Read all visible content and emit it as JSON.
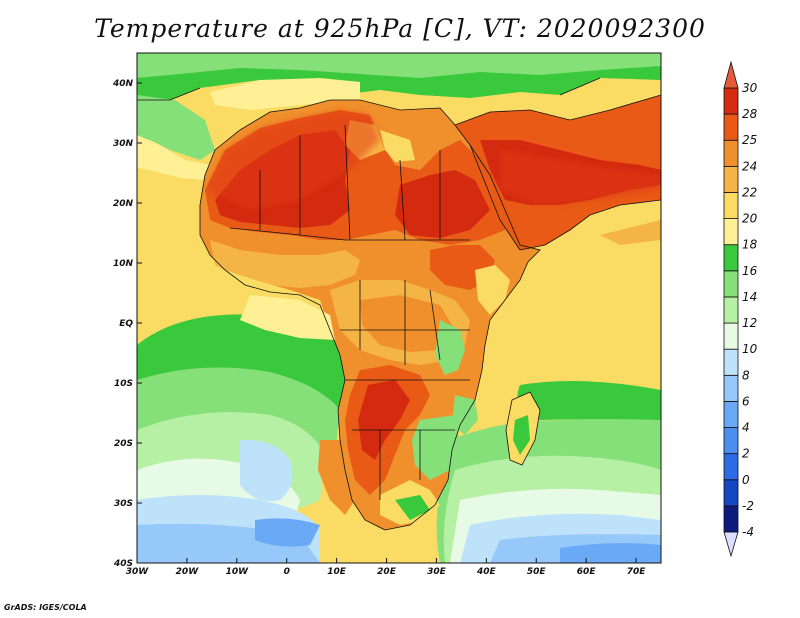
{
  "title": "Temperature at 925hPa [C], VT: 2020092300",
  "credit": "GrADS: IGES/COLA",
  "map": {
    "projection": "latlon",
    "lon_range": [
      -30,
      75
    ],
    "lat_range": [
      -40,
      45
    ],
    "lon_ticks": [
      "30W",
      "20W",
      "10W",
      "0",
      "10E",
      "20E",
      "30E",
      "40E",
      "50E",
      "60E",
      "70E"
    ],
    "lat_ticks": [
      "40S",
      "30S",
      "20S",
      "10S",
      "EQ",
      "10N",
      "20N",
      "30N",
      "40N"
    ],
    "ocean_color": "#fadc64",
    "land_hot_color": "#e23a16"
  },
  "colorbar": {
    "levels": [
      "-4",
      "-2",
      "0",
      "2",
      "4",
      "6",
      "8",
      "10",
      "12",
      "14",
      "16",
      "18",
      "20",
      "22",
      "24",
      "25",
      "28",
      "30"
    ],
    "colors": [
      "#ddddff",
      "#0c1c7c",
      "#1546c4",
      "#2d6ae6",
      "#4b8ef0",
      "#6aa9f5",
      "#96c8fa",
      "#bfe2fb",
      "#e6fae6",
      "#b6f0a4",
      "#86e07a",
      "#3ac83c",
      "#fff096",
      "#fadc64",
      "#f5b446",
      "#f0902c",
      "#e85a16",
      "#d42a10",
      "#e65a3c"
    ]
  }
}
